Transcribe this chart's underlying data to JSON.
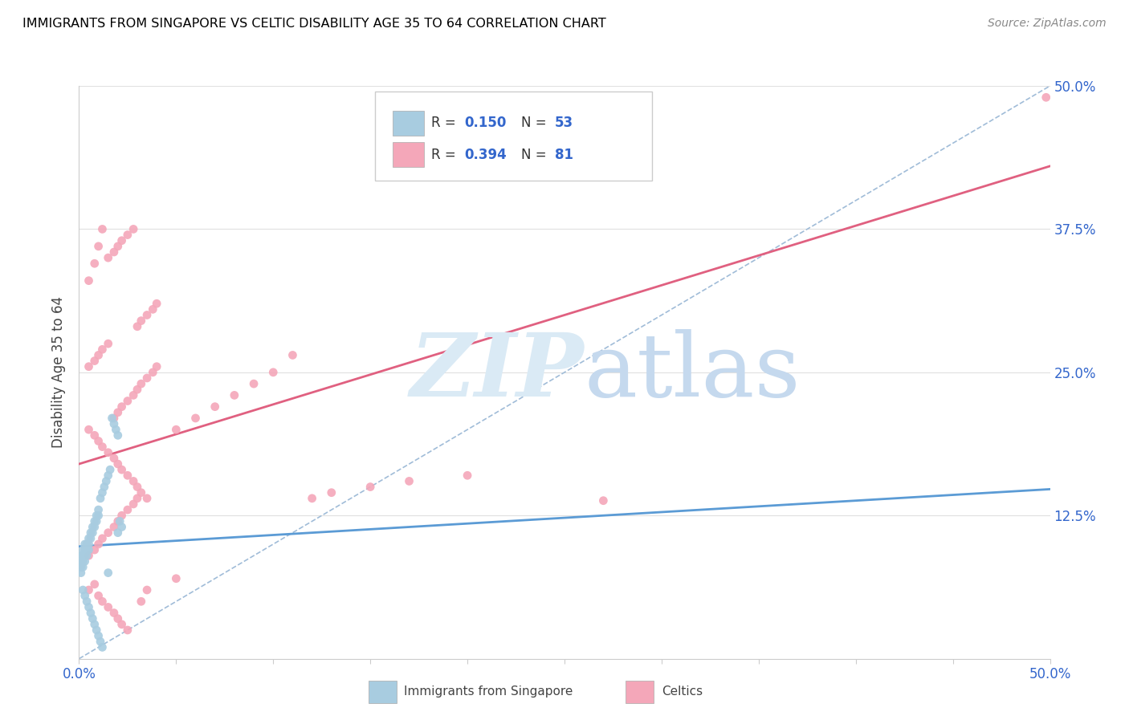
{
  "title": "IMMIGRANTS FROM SINGAPORE VS CELTIC DISABILITY AGE 35 TO 64 CORRELATION CHART",
  "source": "Source: ZipAtlas.com",
  "ylabel": "Disability Age 35 to 64",
  "xlim": [
    0.0,
    0.5
  ],
  "ylim": [
    0.0,
    0.5
  ],
  "xticks": [
    0.0,
    0.05,
    0.1,
    0.15,
    0.2,
    0.25,
    0.3,
    0.35,
    0.4,
    0.45,
    0.5
  ],
  "yticks": [
    0.0,
    0.125,
    0.25,
    0.375,
    0.5
  ],
  "ytick_labels_right": [
    "",
    "12.5%",
    "25.0%",
    "37.5%",
    "50.0%"
  ],
  "blue_color": "#a8cce0",
  "pink_color": "#f4a7b9",
  "blue_line_color": "#5b9bd5",
  "pink_line_color": "#e06080",
  "diagonal_color": "#a0bcd8",
  "axis_label_color": "#3366cc",
  "title_color": "#000000",
  "background_color": "#ffffff",
  "grid_color": "#e0e0e0",
  "sg_line_y_start": 0.098,
  "sg_line_y_end": 0.148,
  "celtic_line_y_start": 0.17,
  "celtic_line_y_end": 0.43,
  "sg_x": [
    0.001,
    0.001,
    0.001,
    0.001,
    0.002,
    0.002,
    0.002,
    0.002,
    0.003,
    0.003,
    0.003,
    0.003,
    0.004,
    0.004,
    0.004,
    0.005,
    0.005,
    0.005,
    0.006,
    0.006,
    0.007,
    0.007,
    0.008,
    0.008,
    0.009,
    0.009,
    0.01,
    0.01,
    0.011,
    0.012,
    0.013,
    0.014,
    0.015,
    0.016,
    0.017,
    0.018,
    0.019,
    0.02,
    0.021,
    0.022,
    0.002,
    0.003,
    0.004,
    0.005,
    0.006,
    0.007,
    0.008,
    0.009,
    0.01,
    0.011,
    0.012,
    0.015,
    0.02
  ],
  "sg_y": [
    0.09,
    0.085,
    0.08,
    0.075,
    0.095,
    0.09,
    0.085,
    0.08,
    0.1,
    0.095,
    0.09,
    0.085,
    0.1,
    0.095,
    0.09,
    0.105,
    0.1,
    0.095,
    0.11,
    0.105,
    0.115,
    0.11,
    0.12,
    0.115,
    0.125,
    0.12,
    0.13,
    0.125,
    0.14,
    0.145,
    0.15,
    0.155,
    0.16,
    0.165,
    0.21,
    0.205,
    0.2,
    0.195,
    0.12,
    0.115,
    0.06,
    0.055,
    0.05,
    0.045,
    0.04,
    0.035,
    0.03,
    0.025,
    0.02,
    0.015,
    0.01,
    0.075,
    0.11
  ],
  "celt_x": [
    0.005,
    0.008,
    0.01,
    0.012,
    0.015,
    0.018,
    0.02,
    0.022,
    0.025,
    0.028,
    0.03,
    0.032,
    0.035,
    0.038,
    0.04,
    0.005,
    0.008,
    0.01,
    0.012,
    0.015,
    0.018,
    0.02,
    0.022,
    0.025,
    0.028,
    0.03,
    0.032,
    0.035,
    0.038,
    0.04,
    0.005,
    0.008,
    0.01,
    0.012,
    0.015,
    0.018,
    0.02,
    0.022,
    0.025,
    0.028,
    0.03,
    0.032,
    0.035,
    0.05,
    0.06,
    0.07,
    0.08,
    0.09,
    0.1,
    0.11,
    0.12,
    0.13,
    0.15,
    0.17,
    0.2,
    0.005,
    0.008,
    0.01,
    0.012,
    0.015,
    0.018,
    0.02,
    0.022,
    0.025,
    0.028,
    0.03,
    0.032,
    0.035,
    0.05,
    0.27,
    0.005,
    0.008,
    0.01,
    0.012,
    0.015,
    0.018,
    0.02,
    0.022,
    0.025,
    0.498
  ],
  "celt_y": [
    0.33,
    0.345,
    0.36,
    0.375,
    0.35,
    0.355,
    0.36,
    0.365,
    0.37,
    0.375,
    0.29,
    0.295,
    0.3,
    0.305,
    0.31,
    0.255,
    0.26,
    0.265,
    0.27,
    0.275,
    0.21,
    0.215,
    0.22,
    0.225,
    0.23,
    0.235,
    0.24,
    0.245,
    0.25,
    0.255,
    0.2,
    0.195,
    0.19,
    0.185,
    0.18,
    0.175,
    0.17,
    0.165,
    0.16,
    0.155,
    0.15,
    0.145,
    0.14,
    0.2,
    0.21,
    0.22,
    0.23,
    0.24,
    0.25,
    0.265,
    0.14,
    0.145,
    0.15,
    0.155,
    0.16,
    0.09,
    0.095,
    0.1,
    0.105,
    0.11,
    0.115,
    0.12,
    0.125,
    0.13,
    0.135,
    0.14,
    0.05,
    0.06,
    0.07,
    0.138,
    0.06,
    0.065,
    0.055,
    0.05,
    0.045,
    0.04,
    0.035,
    0.03,
    0.025,
    0.49
  ]
}
